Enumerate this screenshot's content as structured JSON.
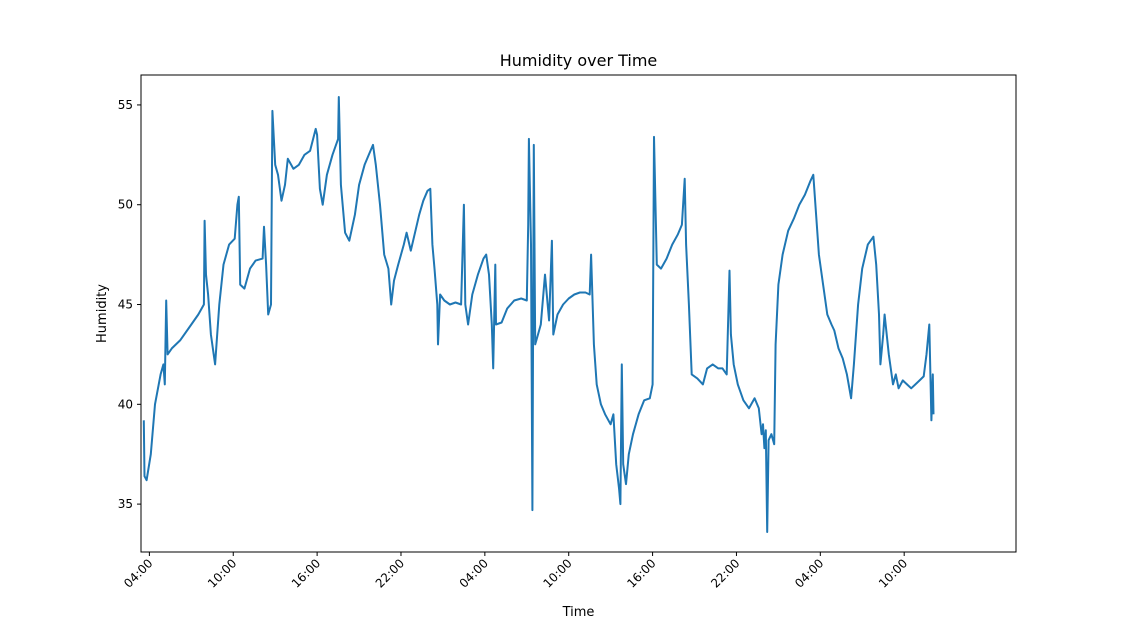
{
  "chart_data": {
    "type": "line",
    "title": "Humidity over Time",
    "xlabel": "Time",
    "ylabel": "Humidity",
    "grid": false,
    "legend": "none",
    "x_unit": "hours",
    "xlim": [
      -0.6,
      62.0
    ],
    "ylim": [
      32.6,
      56.5
    ],
    "x_ticks": [
      {
        "value": 0,
        "label": "04:00"
      },
      {
        "value": 6,
        "label": "10:00"
      },
      {
        "value": 12,
        "label": "16:00"
      },
      {
        "value": 18,
        "label": "22:00"
      },
      {
        "value": 24,
        "label": "04:00"
      },
      {
        "value": 30,
        "label": "10:00"
      },
      {
        "value": 36,
        "label": "16:00"
      },
      {
        "value": 42,
        "label": "22:00"
      },
      {
        "value": 48,
        "label": "04:00"
      },
      {
        "value": 54,
        "label": "10:00"
      }
    ],
    "y_ticks": [
      35,
      40,
      45,
      50,
      55
    ],
    "series": [
      {
        "color": "#1f77b4",
        "points": [
          [
            -0.4,
            39.2
          ],
          [
            -0.35,
            36.4
          ],
          [
            -0.2,
            36.2
          ],
          [
            0.1,
            37.5
          ],
          [
            0.4,
            40.0
          ],
          [
            0.8,
            41.5
          ],
          [
            1.0,
            42.0
          ],
          [
            1.1,
            41.0
          ],
          [
            1.2,
            45.2
          ],
          [
            1.3,
            42.5
          ],
          [
            1.6,
            42.8
          ],
          [
            2.2,
            43.2
          ],
          [
            3.0,
            44.0
          ],
          [
            3.5,
            44.5
          ],
          [
            3.9,
            45.0
          ],
          [
            3.95,
            49.2
          ],
          [
            4.05,
            46.5
          ],
          [
            4.2,
            45.5
          ],
          [
            4.4,
            43.5
          ],
          [
            4.7,
            42.0
          ],
          [
            5.0,
            45.0
          ],
          [
            5.3,
            47.0
          ],
          [
            5.7,
            48.0
          ],
          [
            6.1,
            48.3
          ],
          [
            6.3,
            50.0
          ],
          [
            6.4,
            50.4
          ],
          [
            6.5,
            46.0
          ],
          [
            6.8,
            45.8
          ],
          [
            7.2,
            46.8
          ],
          [
            7.6,
            47.2
          ],
          [
            8.1,
            47.3
          ],
          [
            8.2,
            48.9
          ],
          [
            8.35,
            47.0
          ],
          [
            8.5,
            44.5
          ],
          [
            8.7,
            45.0
          ],
          [
            8.8,
            54.7
          ],
          [
            9.0,
            52.0
          ],
          [
            9.2,
            51.5
          ],
          [
            9.45,
            50.2
          ],
          [
            9.7,
            51.0
          ],
          [
            9.9,
            52.3
          ],
          [
            10.3,
            51.8
          ],
          [
            10.7,
            52.0
          ],
          [
            11.1,
            52.5
          ],
          [
            11.5,
            52.7
          ],
          [
            11.9,
            53.8
          ],
          [
            12.0,
            53.5
          ],
          [
            12.2,
            50.8
          ],
          [
            12.4,
            50.0
          ],
          [
            12.7,
            51.5
          ],
          [
            13.1,
            52.5
          ],
          [
            13.5,
            53.3
          ],
          [
            13.55,
            55.4
          ],
          [
            13.7,
            51.0
          ],
          [
            14.0,
            48.6
          ],
          [
            14.3,
            48.2
          ],
          [
            14.7,
            49.5
          ],
          [
            15.0,
            51.0
          ],
          [
            15.4,
            52.0
          ],
          [
            15.7,
            52.5
          ],
          [
            16.0,
            53.0
          ],
          [
            16.2,
            52.0
          ],
          [
            16.5,
            50.0
          ],
          [
            16.8,
            47.5
          ],
          [
            17.1,
            46.8
          ],
          [
            17.3,
            45.0
          ],
          [
            17.5,
            46.2
          ],
          [
            17.8,
            47.0
          ],
          [
            18.0,
            47.5
          ],
          [
            18.2,
            48.0
          ],
          [
            18.4,
            48.6
          ],
          [
            18.7,
            47.7
          ],
          [
            19.0,
            48.6
          ],
          [
            19.3,
            49.5
          ],
          [
            19.6,
            50.2
          ],
          [
            19.9,
            50.7
          ],
          [
            20.1,
            50.8
          ],
          [
            20.25,
            48.0
          ],
          [
            20.4,
            46.8
          ],
          [
            20.6,
            45.0
          ],
          [
            20.65,
            43.0
          ],
          [
            20.8,
            45.5
          ],
          [
            21.1,
            45.2
          ],
          [
            21.5,
            45.0
          ],
          [
            21.9,
            45.1
          ],
          [
            22.3,
            45.0
          ],
          [
            22.5,
            50.0
          ],
          [
            22.6,
            45.0
          ],
          [
            22.8,
            44.0
          ],
          [
            23.1,
            45.5
          ],
          [
            23.5,
            46.5
          ],
          [
            23.9,
            47.3
          ],
          [
            24.1,
            47.5
          ],
          [
            24.3,
            46.5
          ],
          [
            24.5,
            44.0
          ],
          [
            24.6,
            41.8
          ],
          [
            24.75,
            47.0
          ],
          [
            24.8,
            44.0
          ],
          [
            25.2,
            44.1
          ],
          [
            25.6,
            44.8
          ],
          [
            26.1,
            45.2
          ],
          [
            26.6,
            45.3
          ],
          [
            27.0,
            45.2
          ],
          [
            27.1,
            49.0
          ],
          [
            27.15,
            53.3
          ],
          [
            27.3,
            48.0
          ],
          [
            27.4,
            34.7
          ],
          [
            27.5,
            53.0
          ],
          [
            27.6,
            43.0
          ],
          [
            27.8,
            43.5
          ],
          [
            28.0,
            44.0
          ],
          [
            28.3,
            46.5
          ],
          [
            28.6,
            44.2
          ],
          [
            28.8,
            48.2
          ],
          [
            28.9,
            43.5
          ],
          [
            29.2,
            44.5
          ],
          [
            29.6,
            45.0
          ],
          [
            30.0,
            45.3
          ],
          [
            30.4,
            45.5
          ],
          [
            30.8,
            45.6
          ],
          [
            31.2,
            45.6
          ],
          [
            31.5,
            45.5
          ],
          [
            31.6,
            47.5
          ],
          [
            31.8,
            43.0
          ],
          [
            32.0,
            41.0
          ],
          [
            32.3,
            40.0
          ],
          [
            32.6,
            39.5
          ],
          [
            33.0,
            39.0
          ],
          [
            33.2,
            39.5
          ],
          [
            33.4,
            37.0
          ],
          [
            33.6,
            35.8
          ],
          [
            33.7,
            35.0
          ],
          [
            33.8,
            42.0
          ],
          [
            33.9,
            37.0
          ],
          [
            34.1,
            36.0
          ],
          [
            34.3,
            37.5
          ],
          [
            34.6,
            38.5
          ],
          [
            35.0,
            39.5
          ],
          [
            35.4,
            40.2
          ],
          [
            35.8,
            40.3
          ],
          [
            36.0,
            41.0
          ],
          [
            36.1,
            53.4
          ],
          [
            36.3,
            47.0
          ],
          [
            36.6,
            46.8
          ],
          [
            37.0,
            47.3
          ],
          [
            37.4,
            48.0
          ],
          [
            37.8,
            48.5
          ],
          [
            38.1,
            49.0
          ],
          [
            38.3,
            51.3
          ],
          [
            38.4,
            48.0
          ],
          [
            38.6,
            45.0
          ],
          [
            38.8,
            41.5
          ],
          [
            39.2,
            41.3
          ],
          [
            39.6,
            41.0
          ],
          [
            39.9,
            41.8
          ],
          [
            40.3,
            42.0
          ],
          [
            40.7,
            41.8
          ],
          [
            41.0,
            41.8
          ],
          [
            41.3,
            41.5
          ],
          [
            41.5,
            46.7
          ],
          [
            41.6,
            43.5
          ],
          [
            41.8,
            42.0
          ],
          [
            42.1,
            41.0
          ],
          [
            42.5,
            40.2
          ],
          [
            42.9,
            39.8
          ],
          [
            43.3,
            40.3
          ],
          [
            43.6,
            39.8
          ],
          [
            43.8,
            38.5
          ],
          [
            43.9,
            39.0
          ],
          [
            44.0,
            37.8
          ],
          [
            44.1,
            38.7
          ],
          [
            44.2,
            33.6
          ],
          [
            44.3,
            38.2
          ],
          [
            44.5,
            38.5
          ],
          [
            44.7,
            38.0
          ],
          [
            44.8,
            43.0
          ],
          [
            45.0,
            46.0
          ],
          [
            45.3,
            47.5
          ],
          [
            45.7,
            48.7
          ],
          [
            46.1,
            49.3
          ],
          [
            46.5,
            50.0
          ],
          [
            46.9,
            50.5
          ],
          [
            47.3,
            51.2
          ],
          [
            47.5,
            51.5
          ],
          [
            47.7,
            49.5
          ],
          [
            47.9,
            47.5
          ],
          [
            48.2,
            46.0
          ],
          [
            48.5,
            44.5
          ],
          [
            48.8,
            44.0
          ],
          [
            49.0,
            43.7
          ],
          [
            49.3,
            42.8
          ],
          [
            49.6,
            42.3
          ],
          [
            49.9,
            41.5
          ],
          [
            50.2,
            40.3
          ],
          [
            50.4,
            42.0
          ],
          [
            50.7,
            45.0
          ],
          [
            51.0,
            46.8
          ],
          [
            51.4,
            48.0
          ],
          [
            51.8,
            48.4
          ],
          [
            52.0,
            47.0
          ],
          [
            52.2,
            44.5
          ],
          [
            52.3,
            42.0
          ],
          [
            52.5,
            43.5
          ],
          [
            52.6,
            44.5
          ],
          [
            52.9,
            42.5
          ],
          [
            53.2,
            41.0
          ],
          [
            53.4,
            41.5
          ],
          [
            53.6,
            40.8
          ],
          [
            53.9,
            41.2
          ],
          [
            54.2,
            41.0
          ],
          [
            54.5,
            40.8
          ],
          [
            54.8,
            41.0
          ],
          [
            55.1,
            41.2
          ],
          [
            55.4,
            41.4
          ],
          [
            55.6,
            42.5
          ],
          [
            55.8,
            44.0
          ],
          [
            55.95,
            39.2
          ],
          [
            56.05,
            41.5
          ],
          [
            56.1,
            39.5
          ]
        ]
      }
    ]
  }
}
